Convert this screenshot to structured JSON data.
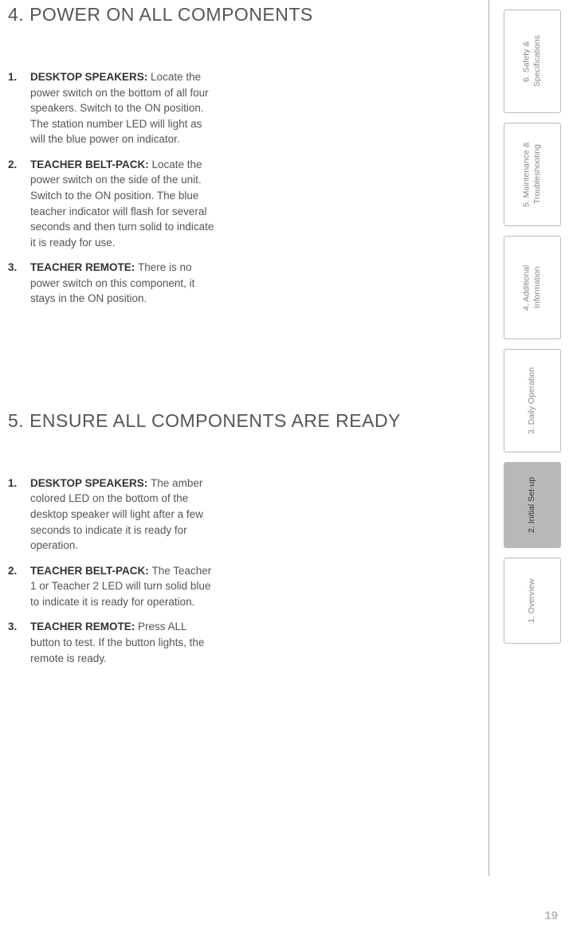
{
  "sections": [
    {
      "heading": "4.  POWER ON ALL COMPONENTS",
      "steps": [
        {
          "num": "1.",
          "label": "DESKTOP SPEAKERS: ",
          "text": "Locate the power switch on the bottom of all four speakers. Switch to the ON position. The station number LED will light as will the blue power on indicator."
        },
        {
          "num": "2.",
          "label": "TEACHER BELT-PACK: ",
          "text": "Locate the power switch on the side of the unit. Switch to the ON position. The blue teacher indicator will flash for several seconds and then turn solid to indicate it is ready for use."
        },
        {
          "num": "3.",
          "label": "TEACHER REMOTE: ",
          "text": "There is no power switch on this component, it stays in the ON position."
        }
      ]
    },
    {
      "heading": "5.  ENSURE ALL COMPONENTS ARE READY",
      "steps": [
        {
          "num": "1.",
          "label": "DESKTOP SPEAKERS: ",
          "text": "The amber colored LED on the bottom of the desktop speaker will light after a few seconds to indicate it is ready for operation."
        },
        {
          "num": "2.",
          "label": "TEACHER BELT-PACK: ",
          "text": "The Teacher 1 or Teacher 2 LED will turn solid blue to indicate it is ready for operation."
        },
        {
          "num": "3.",
          "label": "TEACHER REMOTE: ",
          "text": "Press ALL button to test. If the button lights, the remote is ready."
        }
      ]
    }
  ],
  "tabs": [
    {
      "label": "6. Safety & Specifications",
      "active": false,
      "short": false
    },
    {
      "label": "5. Maintenance & Troubleshooting",
      "active": false,
      "short": false
    },
    {
      "label": "4. Additional Information",
      "active": false,
      "short": false
    },
    {
      "label": "3. Daily Operation",
      "active": false,
      "short": false
    },
    {
      "label": "2. Initial Set-up",
      "active": true,
      "short": true
    },
    {
      "label": "1. Overview",
      "active": false,
      "short": true
    }
  ],
  "page_number": "19"
}
